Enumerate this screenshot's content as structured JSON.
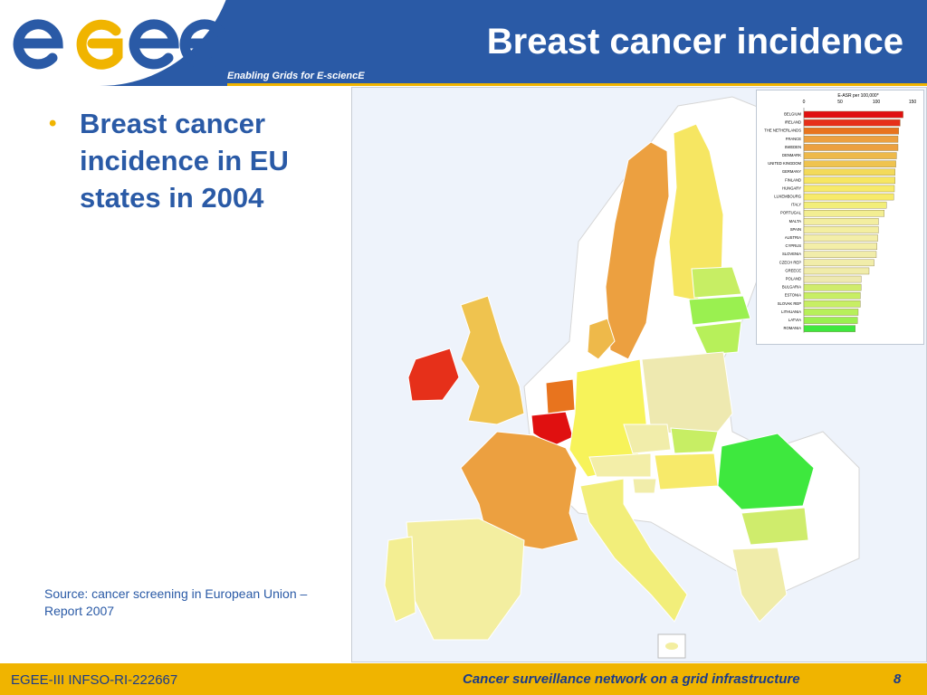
{
  "header": {
    "logo_text": "egee",
    "tagline": "Enabling Grids for E-sciencE",
    "title": "Breast cancer incidence"
  },
  "body": {
    "bullet": "Breast cancer incidence in EU states in 2004",
    "source": "Source: cancer screening in European Union – Report 2007"
  },
  "legend": {
    "title": "E-ASR per 100,000*",
    "ticks": [
      "0",
      "50",
      "100",
      "150"
    ],
    "countries": [
      {
        "name": "BELGIUM",
        "value": 137,
        "color": "#e01010"
      },
      {
        "name": "IRELAND",
        "value": 133,
        "color": "#e6301a"
      },
      {
        "name": "THE NETHERLANDS",
        "value": 131,
        "color": "#e8741e"
      },
      {
        "name": "FRANCE",
        "value": 130,
        "color": "#eca040"
      },
      {
        "name": "SWEDEN",
        "value": 130,
        "color": "#eca040"
      },
      {
        "name": "DENMARK",
        "value": 128,
        "color": "#eeb94a"
      },
      {
        "name": "UNITED KINGDOM",
        "value": 127,
        "color": "#efc34f"
      },
      {
        "name": "GERMANY",
        "value": 126,
        "color": "#f3da5a"
      },
      {
        "name": "FINLAND",
        "value": 126,
        "color": "#f6e662"
      },
      {
        "name": "HUNGARY",
        "value": 125,
        "color": "#f7ea6a"
      },
      {
        "name": "LUXEMBOURG",
        "value": 124,
        "color": "#f7ea6a"
      },
      {
        "name": "ITALY",
        "value": 114,
        "color": "#f2ee7a"
      },
      {
        "name": "PORTUGAL",
        "value": 111,
        "color": "#f3ee92"
      },
      {
        "name": "MALTA",
        "value": 103,
        "color": "#f3eea0"
      },
      {
        "name": "SPAIN",
        "value": 103,
        "color": "#f3eea0"
      },
      {
        "name": "AUSTRIA",
        "value": 102,
        "color": "#f3eea8"
      },
      {
        "name": "CYPRUS",
        "value": 101,
        "color": "#f3eea8"
      },
      {
        "name": "SLOVENIA",
        "value": 100,
        "color": "#f1edaa"
      },
      {
        "name": "CZECH REP",
        "value": 97,
        "color": "#f1edaa"
      },
      {
        "name": "GREECE",
        "value": 90,
        "color": "#f0ecaa"
      },
      {
        "name": "POLAND",
        "value": 79,
        "color": "#eee9b0"
      },
      {
        "name": "BULGARIA",
        "value": 79,
        "color": "#cfec6c"
      },
      {
        "name": "ESTONIA",
        "value": 78,
        "color": "#c7ee64"
      },
      {
        "name": "SLOVAK REP",
        "value": 78,
        "color": "#c7ee64"
      },
      {
        "name": "LITHUANIA",
        "value": 75,
        "color": "#b7f05a"
      },
      {
        "name": "LATVIA",
        "value": 74,
        "color": "#9af050"
      },
      {
        "name": "ROMANIA",
        "value": 71,
        "color": "#3ee83e"
      }
    ]
  },
  "footer": {
    "left": "EGEE-III INFSO-RI-222667",
    "center": "Cancer surveillance network on a grid infrastructure",
    "page": "8"
  }
}
